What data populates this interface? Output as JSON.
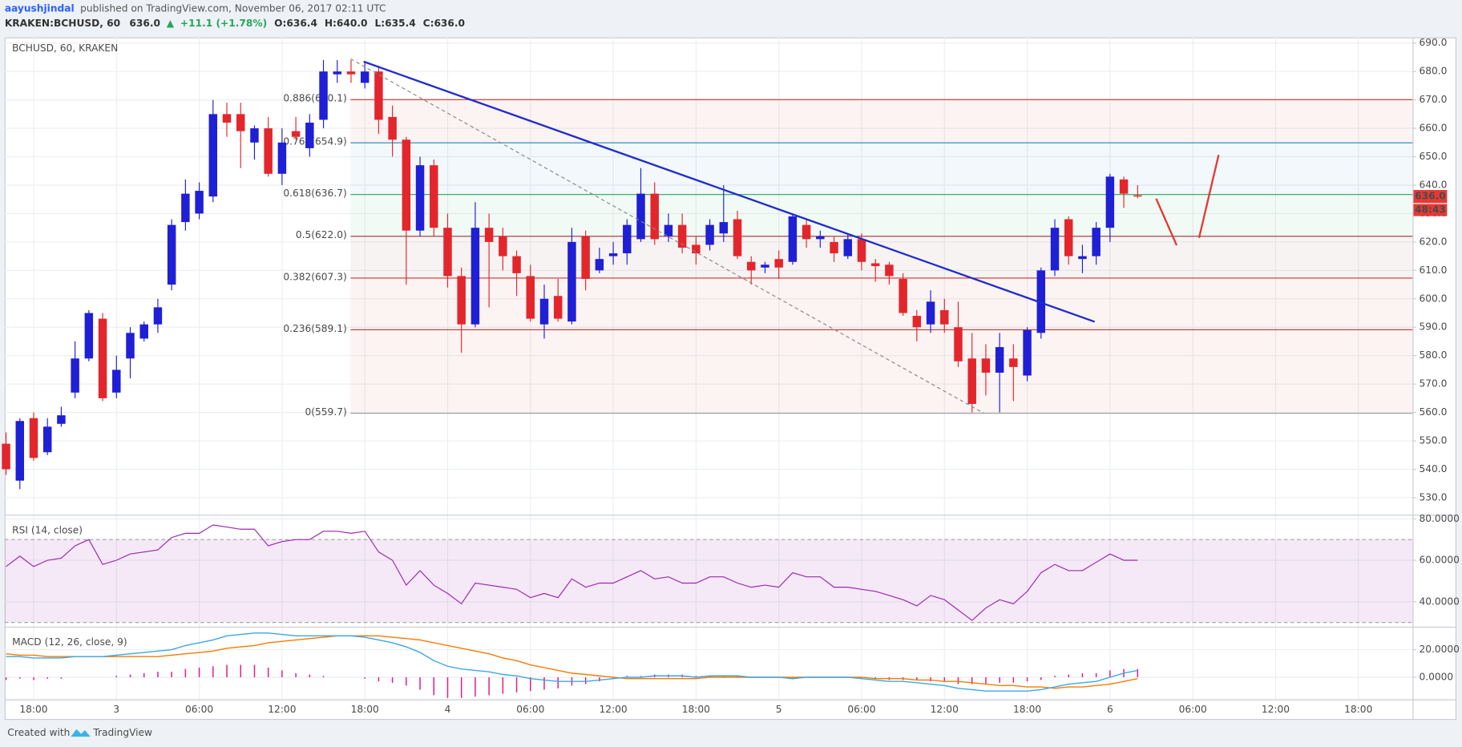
{
  "header": {
    "author": "aayushjindal",
    "published": "published on TradingView.com, November 06, 2017 02:11 UTC",
    "symbol": "KRAKEN:BCHUSD, 60",
    "last": "636.0",
    "arrow": "▲",
    "change": "+11.1 (+1.78%)",
    "open": "O:636.4",
    "high": "H:640.0",
    "low": "L:635.4",
    "close": "C:636.0"
  },
  "chart_data": [
    {
      "type": "candlestick",
      "title": "BCHUSD, 60, KRAKEN",
      "categories": [
        null,
        null,
        "18:00",
        null,
        null,
        null,
        null,
        null,
        "3",
        null,
        null,
        null,
        null,
        null,
        "06:00",
        null,
        null,
        null,
        null,
        null,
        "12:00",
        null,
        null,
        null,
        null,
        null,
        "18:00",
        null,
        null,
        null,
        null,
        null,
        "4",
        null,
        null,
        null,
        null,
        null,
        "06:00",
        null,
        null,
        null,
        null,
        null,
        "12:00",
        null,
        null,
        null,
        null,
        null,
        "18:00",
        null,
        null,
        null,
        null,
        null,
        "5",
        null,
        null,
        null,
        null,
        null,
        "06:00",
        null,
        null,
        null,
        null,
        null,
        "12:00",
        null,
        null,
        null,
        null,
        null,
        "18:00",
        null,
        null,
        null,
        null,
        null,
        "6",
        null,
        null,
        null,
        null,
        null,
        "06:00",
        null,
        null,
        null,
        null,
        null,
        "12:00",
        null,
        null,
        null,
        null,
        null,
        "18:00",
        null,
        null,
        null
      ],
      "open": [
        549,
        536,
        558,
        546,
        556,
        567,
        579,
        593,
        567,
        579,
        586,
        591,
        605,
        627,
        630,
        636,
        665,
        665,
        655,
        660,
        644,
        659,
        653,
        663,
        679,
        680,
        676,
        680,
        664,
        656,
        624,
        647,
        625,
        608,
        591,
        625,
        622,
        615,
        608,
        591,
        601,
        592,
        622,
        610,
        615,
        616,
        621,
        637,
        622,
        626,
        619,
        619,
        623,
        628,
        613,
        611,
        614,
        613,
        626,
        621,
        620,
        615,
        621,
        612.5,
        612,
        607,
        594,
        591,
        596,
        590,
        579,
        579,
        574,
        579,
        573,
        588,
        610,
        628,
        614,
        615,
        625,
        642,
        636.4,
        null,
        null,
        null,
        null,
        null,
        null,
        null,
        null,
        null,
        null,
        null,
        null,
        null,
        null,
        null,
        null,
        null,
        null,
        null
      ],
      "high": [
        553,
        558,
        560,
        558,
        562,
        585,
        596,
        595,
        580,
        590,
        592,
        600,
        628,
        642,
        641,
        670,
        669,
        669,
        661,
        664,
        660,
        664,
        665,
        684,
        684,
        684,
        683,
        682,
        668,
        657,
        650,
        649,
        630,
        611,
        634,
        630,
        625,
        617,
        612,
        605,
        607,
        625,
        624,
        618,
        620,
        628,
        646,
        641,
        630,
        630,
        622,
        628,
        640,
        631,
        615,
        613,
        617,
        630,
        628,
        624,
        622,
        623,
        623,
        614,
        613,
        609,
        596,
        603,
        600,
        599,
        588,
        584,
        588,
        584,
        590,
        611,
        628,
        629,
        619,
        627,
        644,
        643,
        640.0,
        null,
        null,
        null,
        null,
        null,
        null,
        null,
        null,
        null,
        null,
        null,
        null,
        null,
        null,
        null,
        null,
        null,
        null,
        null
      ],
      "low": [
        538,
        533,
        543,
        545,
        555,
        565,
        578,
        564,
        565,
        572,
        585,
        588,
        603,
        624,
        628,
        634,
        657,
        646,
        649,
        643,
        640,
        656,
        650,
        660,
        676,
        676,
        674,
        658,
        650,
        605,
        622,
        622,
        604,
        581,
        590,
        597,
        610,
        601,
        592,
        586,
        592,
        591,
        603,
        609,
        612,
        612,
        620,
        619,
        620,
        616,
        612,
        617,
        620,
        614,
        605,
        609,
        607,
        612,
        618,
        618,
        613,
        614,
        610,
        606,
        605,
        594,
        585,
        588,
        588,
        576,
        560,
        566,
        560,
        564,
        571,
        586,
        608,
        612,
        609,
        612,
        620,
        632,
        635.4,
        null,
        null,
        null,
        null,
        null,
        null,
        null,
        null,
        null,
        null,
        null,
        null,
        null,
        null,
        null,
        null,
        null,
        null,
        null
      ],
      "close": [
        540,
        557,
        544,
        555,
        559,
        579,
        595,
        565,
        575,
        588,
        591,
        597,
        626,
        637,
        638,
        665,
        662,
        659,
        660,
        644,
        655,
        657,
        662,
        680,
        680,
        679,
        680,
        663,
        656,
        624,
        647,
        625,
        608,
        591,
        625,
        620,
        615,
        609,
        593,
        600,
        593,
        620,
        607,
        614,
        616,
        626,
        637,
        621,
        626,
        618,
        616,
        626,
        627,
        615,
        610,
        612,
        611,
        629,
        621,
        622,
        616,
        621,
        613,
        611.5,
        608,
        595,
        590,
        599,
        591,
        578,
        563,
        574,
        583,
        576,
        589,
        610,
        625,
        615,
        615,
        625,
        643,
        637,
        636.0,
        null,
        null,
        null,
        null,
        null,
        null,
        null,
        null,
        null,
        null,
        null,
        null,
        null,
        null,
        null,
        null,
        null,
        null,
        null
      ],
      "up_color": "#1f1fd6",
      "down_color": "#e3262c",
      "ylim": [
        524,
        692
      ],
      "yticks": [
        {
          "value": 530,
          "label": "530.0"
        },
        {
          "value": 540,
          "label": "540.0"
        },
        {
          "value": 550,
          "label": "550.0"
        },
        {
          "value": 560,
          "label": "560.0"
        },
        {
          "value": 570,
          "label": "570.0"
        },
        {
          "value": 580,
          "label": "580.0"
        },
        {
          "value": 590,
          "label": "590.0"
        },
        {
          "value": 600,
          "label": "600.0"
        },
        {
          "value": 610,
          "label": "610.0"
        },
        {
          "value": 620,
          "label": "620.0"
        },
        {
          "value": 630,
          "label": "630.0"
        },
        {
          "value": 640,
          "label": "640.0"
        },
        {
          "value": 650,
          "label": "650.0"
        },
        {
          "value": 660,
          "label": "660.0"
        },
        {
          "value": 670,
          "label": "670.0"
        },
        {
          "value": 680,
          "label": "680.0"
        },
        {
          "value": 690,
          "label": "690.0"
        }
      ],
      "grid": true,
      "fib_levels": [
        {
          "label": "0.886(670.1)",
          "value": 670.1,
          "color": "#d32f2f"
        },
        {
          "label": "0.764(654.9)",
          "value": 654.9,
          "color": "#1e88b4"
        },
        {
          "label": "0.618(636.7)",
          "value": 636.7,
          "color": "#26a65b"
        },
        {
          "label": "0.5(622.0)",
          "value": 622.0,
          "color": "#8b3a3a"
        },
        {
          "label": "0.382(607.3)",
          "value": 607.3,
          "color": "#d32f2f"
        },
        {
          "label": "0.236(589.1)",
          "value": 589.1,
          "color": "#d32f2f"
        },
        {
          "label": "0(559.7)",
          "value": 559.7,
          "color": "#9e9e9e"
        }
      ],
      "last_price": {
        "value": 636.0,
        "label": "636.0"
      },
      "countdown": "48:43",
      "tag_color": "#e53935"
    },
    {
      "type": "line",
      "title": "RSI (14, close)",
      "values": [
        57,
        62,
        57,
        60,
        61,
        67,
        70,
        58,
        60,
        63,
        64,
        65,
        71,
        73,
        73,
        77,
        76,
        75,
        75,
        67,
        69,
        70,
        70,
        74,
        74,
        73,
        74,
        64,
        60,
        48,
        55,
        48,
        44,
        39,
        49,
        48,
        47,
        46,
        42,
        44,
        42,
        51,
        47,
        49,
        49,
        52,
        55,
        51,
        52,
        49,
        49,
        52,
        52,
        49,
        47,
        48,
        47,
        54,
        52,
        52,
        47,
        47,
        46,
        45,
        43,
        41,
        38,
        43,
        41,
        36,
        31,
        37,
        41,
        39,
        45,
        54,
        58,
        55,
        55,
        59,
        63,
        60,
        60
      ],
      "color": "#9c27b0",
      "band": [
        30,
        70
      ],
      "ylim": [
        28,
        81.5
      ],
      "yticks": [
        {
          "value": 40,
          "label": "40.0000"
        },
        {
          "value": 60,
          "label": "60.0000"
        },
        {
          "value": 80,
          "label": "80.0000"
        }
      ],
      "grid": true
    },
    {
      "type": "macd",
      "title": "MACD (12, 26, close, 9)",
      "macd_values": [
        15,
        15,
        14,
        14,
        14,
        15,
        15,
        15,
        16,
        17,
        18,
        19,
        20,
        23,
        25,
        27,
        30,
        31,
        32,
        32,
        31,
        30,
        30,
        30,
        30,
        30,
        29,
        27,
        25,
        22,
        18,
        12,
        8,
        6,
        5,
        4,
        2,
        1,
        -1,
        -2,
        -3,
        -3,
        -3,
        -2,
        -1,
        0,
        0,
        1,
        1,
        1,
        0,
        1,
        1,
        1,
        0,
        0,
        0,
        -1,
        0,
        0,
        0,
        0,
        -1,
        -2,
        -3,
        -3,
        -4,
        -5,
        -6,
        -8,
        -9,
        -10,
        -10,
        -10,
        -10,
        -9,
        -7,
        -5,
        -4,
        -3,
        0,
        3,
        5
      ],
      "signal_values": [
        17,
        16,
        16,
        15,
        15,
        15,
        15,
        15,
        15,
        15,
        15,
        15,
        16,
        17,
        18,
        19,
        21,
        22,
        23,
        25,
        26,
        27,
        28,
        29,
        30,
        30,
        30,
        30,
        29,
        28,
        27,
        25,
        23,
        21,
        19,
        17,
        14,
        12,
        9,
        7,
        5,
        3,
        2,
        1,
        0,
        -1,
        -1,
        -1,
        -1,
        -1,
        -1,
        0,
        0,
        0,
        0,
        0,
        0,
        0,
        0,
        0,
        0,
        0,
        0,
        -1,
        -1,
        -1,
        -2,
        -2,
        -3,
        -3,
        -4,
        -5,
        -6,
        -6,
        -7,
        -7,
        -8,
        -7,
        -7,
        -6,
        -5,
        -3,
        -1
      ],
      "histogram_values": [
        -2,
        -1,
        -2,
        -1,
        -1,
        0,
        0,
        0,
        1,
        2,
        3,
        4,
        4,
        6,
        7,
        8,
        9,
        9,
        9,
        7,
        5,
        3,
        2,
        1,
        0,
        0,
        -1,
        -3,
        -4,
        -6,
        -9,
        -13,
        -15,
        -15,
        -14,
        -13,
        -12,
        -11,
        -10,
        -9,
        -8,
        -6,
        -5,
        -3,
        -1,
        1,
        1,
        2,
        2,
        2,
        1,
        1,
        1,
        1,
        0,
        0,
        0,
        -1,
        0,
        0,
        0,
        0,
        -1,
        -1,
        -2,
        -2,
        -2,
        -3,
        -3,
        -5,
        -5,
        -5,
        -4,
        -4,
        -3,
        -2,
        1,
        2,
        3,
        3,
        5,
        6,
        6
      ],
      "macd_color": "#3ea6e8",
      "signal_color": "#f57c00",
      "histogram_color": "#e0208a",
      "ylim": [
        -16,
        36
      ],
      "yticks": [
        {
          "value": 0,
          "label": "0.0000"
        },
        {
          "value": 20,
          "label": "20.0000"
        }
      ],
      "grid": true
    }
  ],
  "footer": {
    "created_with": "Created with",
    "brand": "TradingView"
  }
}
